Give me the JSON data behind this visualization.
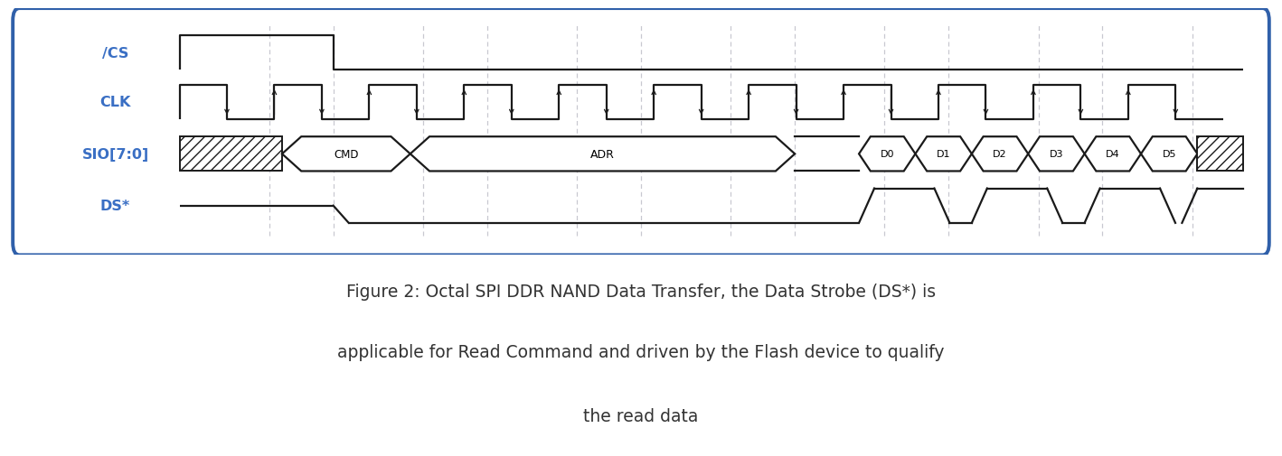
{
  "title_line1": "Figure 2: Octal SPI DDR NAND Data Transfer, the Data Strobe (DS*) is",
  "title_line2": "applicable for Read Command and driven by the Flash device to qualify",
  "title_line3": "the read data",
  "label_color": "#3A6FC4",
  "signal_color": "#1A1A1A",
  "box_border_color": "#3060AA",
  "background_color": "#FFFFFF",
  "grid_color": "#C8C8D0",
  "signal_labels": [
    "/CS",
    "CLK",
    "SIO[7:0]",
    "DS*"
  ],
  "figsize": [
    14.18,
    5.06
  ],
  "dpi": 100,
  "caption_color": "#333333",
  "caption_fontsize": 13.5
}
